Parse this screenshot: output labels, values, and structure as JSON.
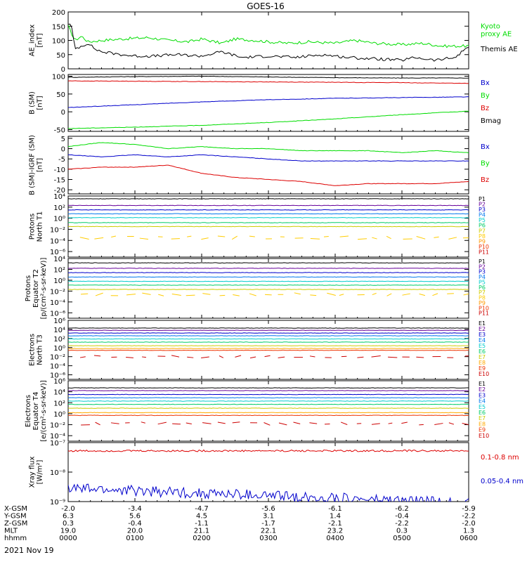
{
  "title": "GOES-16",
  "date_label": "2021 Nov 19",
  "x_ticks": [
    "0000",
    "0100",
    "0200",
    "0300",
    "0400",
    "0500",
    "0600"
  ],
  "ephemeris": {
    "rows": [
      {
        "label": "X-GSM",
        "values": [
          "-2.0",
          "-3.4",
          "-4.7",
          "-5.6",
          "-6.1",
          "-6.2",
          "-5.9"
        ]
      },
      {
        "label": "Y-GSM",
        "values": [
          "6.3",
          "5.6",
          "4.5",
          "3.1",
          "1.4",
          "-0.4",
          "-2.2"
        ]
      },
      {
        "label": "Z-GSM",
        "values": [
          "0.3",
          "-0.4",
          "-1.1",
          "-1.7",
          "-2.1",
          "-2.2",
          "-2.0"
        ]
      },
      {
        "label": "MLT",
        "values": [
          "19.0",
          "20.0",
          "21.1",
          "22.1",
          "23.2",
          "0.3",
          "1.3"
        ]
      },
      {
        "label": "hhmm",
        "values": [
          "0000",
          "0100",
          "0200",
          "0300",
          "0400",
          "0500",
          "0600"
        ]
      }
    ]
  },
  "chart_data": [
    {
      "type": "line",
      "ylabel": [
        "AE_index",
        "[nT]"
      ],
      "ylim": [
        0,
        200
      ],
      "yticks": [
        "0",
        "50",
        "100",
        "150",
        "200"
      ],
      "legend": [
        {
          "name": "Kyoto proxy AE",
          "lines": [
            "Kyoto",
            "proxy AE"
          ],
          "color": "#00dd00"
        },
        {
          "name": "Themis AE",
          "lines": [
            "Themis AE"
          ],
          "color": "#000000"
        }
      ],
      "series": [
        {
          "name": "Kyoto proxy AE",
          "color": "#00dd00",
          "x_hours": [
            0,
            0.1,
            0.2,
            0.3,
            0.5,
            0.8,
            1.2,
            1.5,
            1.8,
            2.0,
            2.3,
            2.5,
            2.8,
            3.0,
            3.3,
            3.6,
            4.0,
            4.3,
            4.6,
            5.0,
            5.3,
            5.6,
            6.0
          ],
          "values": [
            150,
            100,
            115,
            95,
            100,
            105,
            110,
            100,
            95,
            105,
            90,
            105,
            100,
            95,
            90,
            95,
            90,
            100,
            90,
            85,
            90,
            80,
            80
          ]
        },
        {
          "name": "Themis AE",
          "color": "#000000",
          "x_hours": [
            0,
            0.05,
            0.1,
            0.2,
            0.3,
            0.4,
            0.5,
            0.8,
            1.0,
            1.3,
            1.6,
            2.0,
            2.3,
            2.6,
            3.0,
            3.4,
            3.8,
            4.2,
            4.6,
            5.0,
            5.2,
            5.5,
            5.8,
            6.0
          ],
          "values": [
            160,
            150,
            70,
            80,
            90,
            70,
            60,
            50,
            45,
            45,
            50,
            45,
            60,
            40,
            45,
            40,
            50,
            40,
            35,
            30,
            40,
            30,
            40,
            80
          ]
        }
      ]
    },
    {
      "type": "line",
      "ylabel": [
        "B (SM)",
        "[nT]"
      ],
      "ylim": [
        -55,
        105
      ],
      "yticks": [
        "-50",
        "0",
        "50",
        "100"
      ],
      "legend": [
        {
          "name": "Bx",
          "lines": [
            "Bx"
          ],
          "color": "#0000cc"
        },
        {
          "name": "By",
          "lines": [
            "By"
          ],
          "color": "#00dd00"
        },
        {
          "name": "Bz",
          "lines": [
            "Bz"
          ],
          "color": "#dd0000"
        },
        {
          "name": "Bmag",
          "lines": [
            "Bmag"
          ],
          "color": "#000000"
        }
      ],
      "series": [
        {
          "name": "Bmag",
          "color": "#000000",
          "x_hours": [
            0,
            1,
            2,
            3,
            4,
            5,
            6
          ],
          "values": [
            97,
            99,
            100,
            98,
            96,
            95,
            95
          ]
        },
        {
          "name": "Bz",
          "color": "#dd0000",
          "x_hours": [
            0,
            1,
            2,
            3,
            4,
            5,
            6
          ],
          "values": [
            87,
            86,
            85,
            84,
            83,
            82,
            80
          ]
        },
        {
          "name": "Bx",
          "color": "#0000cc",
          "x_hours": [
            0,
            1,
            2,
            3,
            4,
            5,
            6
          ],
          "values": [
            12,
            20,
            28,
            34,
            38,
            40,
            42
          ]
        },
        {
          "name": "By",
          "color": "#00dd00",
          "x_hours": [
            0,
            1,
            2,
            3,
            4,
            5,
            6
          ],
          "values": [
            -47,
            -43,
            -38,
            -30,
            -20,
            -8,
            2
          ]
        }
      ]
    },
    {
      "type": "line",
      "ylabel": [
        "B (SM)-IGRF (SM)",
        "[nT]"
      ],
      "ylim": [
        -22,
        6
      ],
      "yticks": [
        "-20",
        "-15",
        "-10",
        "-5",
        "0",
        "5"
      ],
      "legend": [
        {
          "name": "Bx",
          "lines": [
            "Bx"
          ],
          "color": "#0000cc"
        },
        {
          "name": "By",
          "lines": [
            "By"
          ],
          "color": "#00dd00"
        },
        {
          "name": "Bz",
          "lines": [
            "Bz"
          ],
          "color": "#dd0000"
        }
      ],
      "series": [
        {
          "name": "By",
          "color": "#00dd00",
          "x_hours": [
            0,
            0.5,
            1,
            1.5,
            2,
            2.5,
            3,
            3.5,
            4,
            4.5,
            5,
            5.5,
            6
          ],
          "values": [
            1,
            3,
            2,
            0,
            1,
            0,
            0,
            -1,
            -1,
            -1,
            -2,
            -1,
            -2
          ]
        },
        {
          "name": "Bx",
          "color": "#0000cc",
          "x_hours": [
            0,
            0.5,
            1,
            1.5,
            2,
            2.5,
            3,
            3.5,
            4,
            4.5,
            5,
            5.5,
            6
          ],
          "values": [
            -3,
            -4,
            -3,
            -4,
            -3,
            -4,
            -5,
            -6,
            -6,
            -6,
            -6,
            -6,
            -6
          ]
        },
        {
          "name": "Bz",
          "color": "#dd0000",
          "x_hours": [
            0,
            0.5,
            1,
            1.5,
            2,
            2.5,
            3,
            3.5,
            4,
            4.5,
            5,
            5.5,
            6
          ],
          "values": [
            -10,
            -9,
            -9,
            -8,
            -12,
            -14,
            -15,
            -16,
            -18,
            -17,
            -17,
            -17,
            -16
          ]
        }
      ]
    },
    {
      "type": "line",
      "ylabel": [
        "Protons",
        "North T1"
      ],
      "log_scale": true,
      "ylim_exp": [
        -7,
        4
      ],
      "yticks": [
        "10⁻⁶",
        "10⁻⁴",
        "10⁻²",
        "10⁰",
        "10²",
        "10⁴"
      ],
      "legend_compact": true,
      "legend": [
        {
          "name": "P1",
          "color": "#000000"
        },
        {
          "name": "P2",
          "color": "#660099"
        },
        {
          "name": "P3",
          "color": "#0000cc"
        },
        {
          "name": "P4",
          "color": "#0077ee"
        },
        {
          "name": "P5",
          "color": "#00cccc"
        },
        {
          "name": "P6",
          "color": "#00cc66"
        },
        {
          "name": "P7",
          "color": "#cccc00"
        },
        {
          "name": "P8",
          "color": "#ffcc00"
        },
        {
          "name": "P9",
          "color": "#ff9900"
        },
        {
          "name": "P10",
          "color": "#ee3300"
        },
        {
          "name": "P11",
          "color": "#cc0000"
        }
      ],
      "series": [
        {
          "name": "P1",
          "color": "#000000",
          "level": 3.5
        },
        {
          "name": "P2",
          "color": "#660099",
          "level": 2.3
        },
        {
          "name": "P3",
          "color": "#0000cc",
          "level": 1.5
        },
        {
          "name": "P4",
          "color": "#0077ee",
          "level": 0.8
        },
        {
          "name": "P5",
          "color": "#00cccc",
          "level": 0.1
        },
        {
          "name": "P6",
          "color": "#00cc66",
          "level": -0.8
        },
        {
          "name": "P7",
          "color": "#cccc00",
          "level": -1.5
        },
        {
          "name": "P8",
          "color": "#ffcc00",
          "level": -3.5,
          "sparse": true
        }
      ]
    },
    {
      "type": "line",
      "ylabel": [
        "Protons",
        "Equator T2",
        "[p/(cm²-s-sr-keV)]"
      ],
      "log_scale": true,
      "ylim_exp": [
        -7,
        4
      ],
      "yticks": [
        "10⁻⁶",
        "10⁻⁴",
        "10⁻²",
        "10⁰",
        "10²",
        "10⁴"
      ],
      "legend_compact": true,
      "legend": [
        {
          "name": "P1",
          "color": "#000000"
        },
        {
          "name": "P2",
          "color": "#660099"
        },
        {
          "name": "P3",
          "color": "#0000cc"
        },
        {
          "name": "P4",
          "color": "#0077ee"
        },
        {
          "name": "P5",
          "color": "#00cccc"
        },
        {
          "name": "P6",
          "color": "#00cc66"
        },
        {
          "name": "P7",
          "color": "#cccc00"
        },
        {
          "name": "P8",
          "color": "#ffcc00"
        },
        {
          "name": "P9",
          "color": "#ff9900"
        },
        {
          "name": "P10",
          "color": "#ee3300"
        },
        {
          "name": "P11",
          "color": "#cc0000"
        }
      ],
      "series": [
        {
          "name": "P1",
          "color": "#000000",
          "level": 3.2
        },
        {
          "name": "P2",
          "color": "#660099",
          "level": 2.2
        },
        {
          "name": "P3",
          "color": "#0000cc",
          "level": 1.4
        },
        {
          "name": "P4",
          "color": "#0077ee",
          "level": 0.6
        },
        {
          "name": "P5",
          "color": "#00cccc",
          "level": -0.2
        },
        {
          "name": "P6",
          "color": "#00cc66",
          "level": -0.9
        },
        {
          "name": "P7",
          "color": "#cccc00",
          "level": -1.7
        },
        {
          "name": "P8",
          "color": "#ffcc00",
          "level": -2.6,
          "sparse": true
        }
      ]
    },
    {
      "type": "line",
      "ylabel": [
        "Electrons",
        "North T3"
      ],
      "log_scale": true,
      "ylim_exp": [
        -7,
        6
      ],
      "yticks": [
        "10⁻⁶",
        "10⁻⁴",
        "10⁻²",
        "10⁰",
        "10²",
        "10⁴",
        "10⁶"
      ],
      "legend_compact": true,
      "legend": [
        {
          "name": "E1",
          "color": "#000000"
        },
        {
          "name": "E2",
          "color": "#660099"
        },
        {
          "name": "E3",
          "color": "#0000cc"
        },
        {
          "name": "E4",
          "color": "#0077ee"
        },
        {
          "name": "E5",
          "color": "#00cccc"
        },
        {
          "name": "E6",
          "color": "#00cc66"
        },
        {
          "name": "E7",
          "color": "#cccc00"
        },
        {
          "name": "E8",
          "color": "#ffaa00"
        },
        {
          "name": "E9",
          "color": "#ee3300"
        },
        {
          "name": "E10",
          "color": "#cc0000"
        }
      ],
      "series": [
        {
          "name": "E1",
          "color": "#000000",
          "level": 4.3
        },
        {
          "name": "E2",
          "color": "#660099",
          "level": 3.8
        },
        {
          "name": "E3",
          "color": "#0000cc",
          "level": 3.2
        },
        {
          "name": "E4",
          "color": "#0077ee",
          "level": 2.6
        },
        {
          "name": "E5",
          "color": "#00cccc",
          "level": 1.9
        },
        {
          "name": "E6",
          "color": "#00cc66",
          "level": 1.2
        },
        {
          "name": "E7",
          "color": "#cccc00",
          "level": 0.4
        },
        {
          "name": "E8",
          "color": "#ffaa00",
          "level": -0.2
        },
        {
          "name": "E9",
          "color": "#ee3300",
          "level": -0.6
        },
        {
          "name": "E10",
          "color": "#cc0000",
          "level": -2.0,
          "sparse": true
        }
      ]
    },
    {
      "type": "line",
      "ylabel": [
        "Electrons",
        "Equator T4",
        "[e/(cm²-s-sr-keV)]"
      ],
      "log_scale": true,
      "ylim_exp": [
        -5,
        6
      ],
      "yticks": [
        "10⁻⁴",
        "10⁻²",
        "10⁰",
        "10²",
        "10⁴",
        "10⁶"
      ],
      "legend_compact": true,
      "legend": [
        {
          "name": "E1",
          "color": "#000000"
        },
        {
          "name": "E2",
          "color": "#660099"
        },
        {
          "name": "E3",
          "color": "#0000cc"
        },
        {
          "name": "E4",
          "color": "#0077ee"
        },
        {
          "name": "E5",
          "color": "#00cccc"
        },
        {
          "name": "E6",
          "color": "#00cc66"
        },
        {
          "name": "E7",
          "color": "#cccc00"
        },
        {
          "name": "E8",
          "color": "#ffaa00"
        },
        {
          "name": "E9",
          "color": "#ee3300"
        },
        {
          "name": "E10",
          "color": "#cc0000"
        }
      ],
      "series": [
        {
          "name": "E1",
          "color": "#000000",
          "level": 4.7
        },
        {
          "name": "E2",
          "color": "#660099",
          "level": 4.2
        },
        {
          "name": "E3",
          "color": "#0000cc",
          "level": 3.5
        },
        {
          "name": "E4",
          "color": "#0077ee",
          "level": 2.9
        },
        {
          "name": "E5",
          "color": "#00cccc",
          "level": 2.3
        },
        {
          "name": "E6",
          "color": "#00cc66",
          "level": 1.7
        },
        {
          "name": "E7",
          "color": "#cccc00",
          "level": 1.0
        },
        {
          "name": "E8",
          "color": "#ffaa00",
          "level": 0.2
        },
        {
          "name": "E9",
          "color": "#ee3300",
          "level": -0.3
        },
        {
          "name": "E10",
          "color": "#cc0000",
          "level": -1.8,
          "sparse": true
        }
      ]
    },
    {
      "type": "line",
      "ylabel": [
        "Xray flux",
        "[W/m²]"
      ],
      "log_scale": true,
      "ylim_exp": [
        -9,
        -7
      ],
      "yticks": [
        "10⁻⁹",
        "10⁻⁸",
        "10⁻⁷"
      ],
      "legend": [
        {
          "name": "0.1-0.8 nm",
          "lines": [
            "0.1-0.8 nm"
          ],
          "color": "#dd0000"
        },
        {
          "name": "0.05-0.4 nm",
          "lines": [
            "0.05-0.4 nm"
          ],
          "color": "#0000cc"
        }
      ],
      "series": [
        {
          "name": "0.1-0.8 nm",
          "color": "#dd0000",
          "level": -7.28,
          "noise": 0.03
        },
        {
          "name": "0.05-0.4 nm",
          "color": "#0000cc",
          "start": -8.55,
          "end": -9.05,
          "noise": 0.18
        }
      ]
    }
  ]
}
